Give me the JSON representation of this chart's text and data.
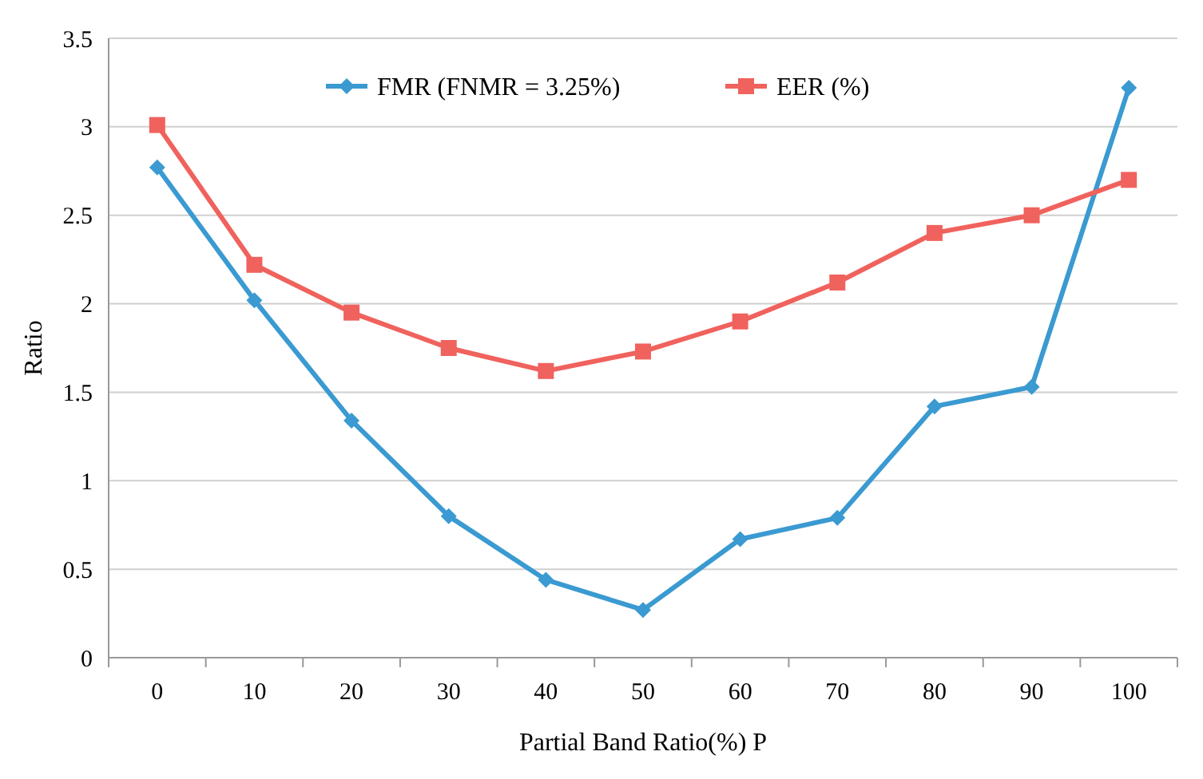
{
  "chart_data": {
    "type": "line",
    "xlabel": "Partial Band Ratio(%) P",
    "ylabel": "Ratio",
    "categories": [
      "0",
      "10",
      "20",
      "30",
      "40",
      "50",
      "60",
      "70",
      "80",
      "90",
      "100"
    ],
    "series": [
      {
        "name": "FMR (FNMR = 3.25%)",
        "color": "#3a9ad1",
        "marker": "diamond",
        "values": [
          2.77,
          2.02,
          1.34,
          0.8,
          0.44,
          0.27,
          0.67,
          0.79,
          1.42,
          1.53,
          3.22
        ]
      },
      {
        "name": "EER (%)",
        "color": "#f0625d",
        "marker": "square",
        "values": [
          3.01,
          2.22,
          1.95,
          1.75,
          1.62,
          1.73,
          1.9,
          2.12,
          2.4,
          2.5,
          2.7
        ]
      }
    ],
    "ylim": [
      0,
      3.5
    ],
    "yticks": [
      0,
      0.5,
      1,
      1.5,
      2,
      2.5,
      3,
      3.5
    ],
    "grid": "y",
    "legend": "top",
    "line_style": "solid"
  }
}
